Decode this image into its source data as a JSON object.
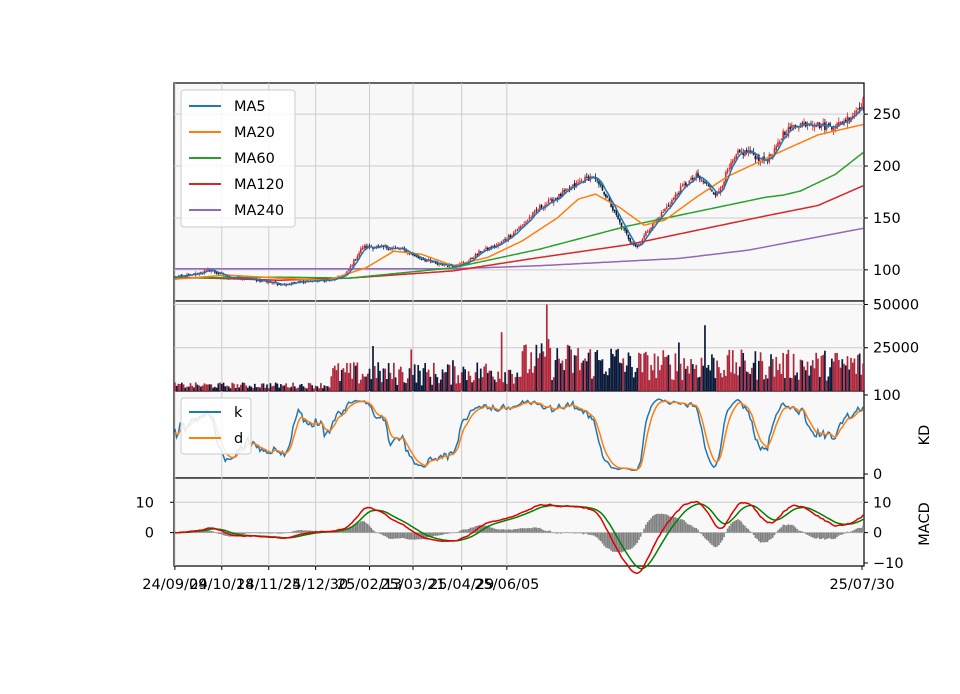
{
  "chart_data": {
    "type": "stock-panels",
    "x_dates": [
      "24/09/09",
      "24/10/18",
      "24/11/25",
      "24/12/30",
      "25/02/13",
      "25/03/21",
      "25/04/29",
      "25/06/05",
      "25/07/30"
    ],
    "colors": {
      "MA5": "#1f77b4",
      "MA20": "#ff7f0e",
      "MA60": "#2ca02c",
      "MA120": "#d62728",
      "MA240": "#9467bd",
      "up": "#d62728",
      "down": "#0a1a3a",
      "k": "#1f77b4",
      "d": "#ff7f0e",
      "dif": "#e00000",
      "dea": "#008000",
      "macd_bar": "#808080"
    },
    "price_panel": {
      "ylim": [
        70,
        280
      ],
      "yticks": [
        100,
        150,
        200,
        250
      ],
      "legend_position": "upper-left",
      "legend": [
        "MA5",
        "MA20",
        "MA60",
        "MA120",
        "MA240"
      ],
      "anchors": [
        [
          0,
          93
        ],
        [
          10,
          95
        ],
        [
          20,
          100
        ],
        [
          30,
          93
        ],
        [
          45,
          91
        ],
        [
          62,
          86
        ],
        [
          75,
          89
        ],
        [
          90,
          90
        ],
        [
          98,
          95
        ],
        [
          108,
          122
        ],
        [
          118,
          122
        ],
        [
          130,
          120
        ],
        [
          140,
          112
        ],
        [
          150,
          106
        ],
        [
          160,
          104
        ],
        [
          168,
          107
        ],
        [
          176,
          118
        ],
        [
          186,
          124
        ],
        [
          198,
          140
        ],
        [
          210,
          160
        ],
        [
          222,
          172
        ],
        [
          234,
          186
        ],
        [
          240,
          190
        ],
        [
          246,
          178
        ],
        [
          256,
          145
        ],
        [
          262,
          128
        ],
        [
          266,
          122
        ],
        [
          272,
          138
        ],
        [
          282,
          158
        ],
        [
          292,
          180
        ],
        [
          300,
          190
        ],
        [
          306,
          182
        ],
        [
          312,
          172
        ],
        [
          318,
          195
        ],
        [
          324,
          212
        ],
        [
          330,
          214
        ],
        [
          338,
          205
        ],
        [
          344,
          210
        ],
        [
          350,
          232
        ],
        [
          358,
          240
        ],
        [
          366,
          242
        ],
        [
          374,
          238
        ],
        [
          382,
          240
        ],
        [
          390,
          250
        ],
        [
          396,
          262
        ]
      ],
      "ma20_anchors": [
        [
          0,
          91
        ],
        [
          30,
          95
        ],
        [
          60,
          92
        ],
        [
          88,
          90
        ],
        [
          110,
          102
        ],
        [
          126,
          118
        ],
        [
          142,
          115
        ],
        [
          160,
          104
        ],
        [
          180,
          112
        ],
        [
          200,
          128
        ],
        [
          220,
          150
        ],
        [
          232,
          168
        ],
        [
          242,
          173
        ],
        [
          256,
          160
        ],
        [
          270,
          143
        ],
        [
          282,
          148
        ],
        [
          300,
          170
        ],
        [
          318,
          190
        ],
        [
          336,
          204
        ],
        [
          350,
          215
        ],
        [
          370,
          230
        ],
        [
          396,
          240
        ]
      ],
      "ma60_anchors": [
        [
          0,
          92
        ],
        [
          60,
          93
        ],
        [
          100,
          92
        ],
        [
          160,
          102
        ],
        [
          210,
          120
        ],
        [
          260,
          142
        ],
        [
          300,
          156
        ],
        [
          340,
          170
        ],
        [
          350,
          172
        ],
        [
          360,
          176
        ],
        [
          380,
          192
        ],
        [
          396,
          213
        ]
      ],
      "ma120_anchors": [
        [
          0,
          93
        ],
        [
          60,
          90
        ],
        [
          100,
          92
        ],
        [
          160,
          99
        ],
        [
          210,
          112
        ],
        [
          260,
          124
        ],
        [
          300,
          138
        ],
        [
          340,
          152
        ],
        [
          370,
          162
        ],
        [
          396,
          181
        ]
      ],
      "ma240_anchors": [
        [
          0,
          101
        ],
        [
          100,
          101
        ],
        [
          160,
          101
        ],
        [
          210,
          104
        ],
        [
          290,
          111
        ],
        [
          330,
          119
        ],
        [
          396,
          140
        ]
      ]
    },
    "volume_panel": {
      "ylim": [
        0,
        52000
      ],
      "yticks": [
        25000,
        50000
      ],
      "tick_labels": [
        "25000",
        "50000"
      ]
    },
    "kd_panel": {
      "ylabel": "KD",
      "ylim": [
        -5,
        105
      ],
      "yticks": [
        0,
        100
      ],
      "legend": [
        "k",
        "d"
      ],
      "legend_position": "upper-left"
    },
    "macd_panel": {
      "ylabel": "MACD",
      "left_yticks": [
        0,
        10
      ],
      "right_yticks": [
        -10,
        0,
        10
      ],
      "ylim": [
        -11,
        18
      ]
    }
  }
}
